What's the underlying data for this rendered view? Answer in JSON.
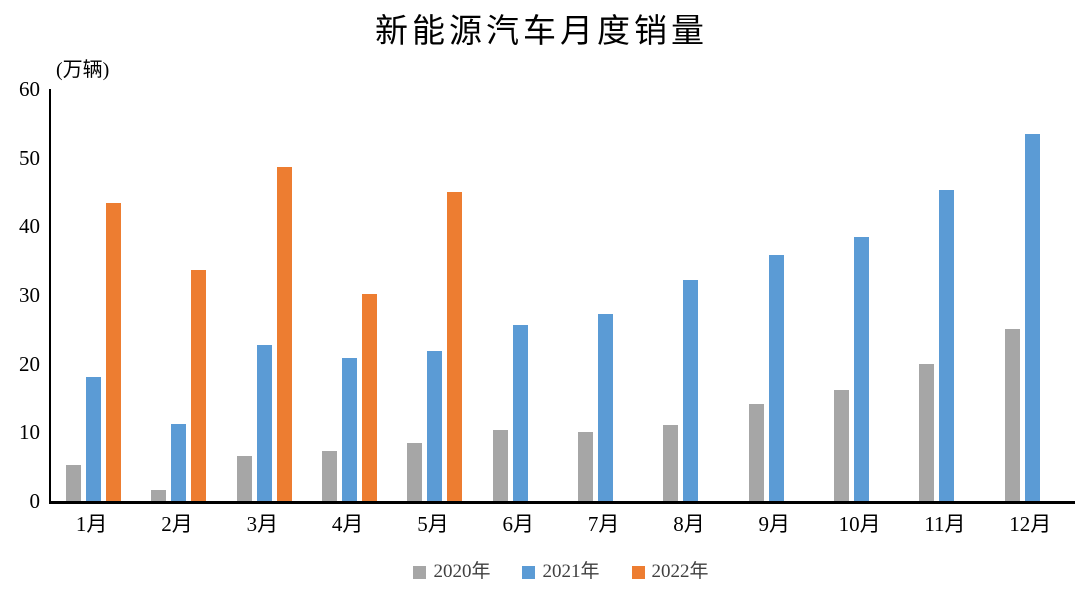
{
  "chart_data": {
    "type": "bar",
    "title": "新能源汽车月度销量",
    "unit_label": "(万辆)",
    "xlabel": "",
    "ylabel": "万辆",
    "categories": [
      "1月",
      "2月",
      "3月",
      "4月",
      "5月",
      "6月",
      "7月",
      "8月",
      "9月",
      "10月",
      "11月",
      "12月"
    ],
    "series": [
      {
        "name": "2020年",
        "color": "#A6A6A6",
        "values": [
          5.3,
          1.6,
          6.6,
          7.3,
          8.4,
          10.4,
          10.0,
          11.0,
          14.1,
          16.1,
          20.0,
          25.0
        ]
      },
      {
        "name": "2021年",
        "color": "#5B9BD5",
        "values": [
          18.0,
          11.2,
          22.7,
          20.8,
          21.8,
          25.7,
          27.3,
          32.2,
          35.8,
          38.5,
          45.3,
          53.4
        ]
      },
      {
        "name": "2022年",
        "color": "#ED7D31",
        "values": [
          43.4,
          33.6,
          48.6,
          30.1,
          45.0,
          null,
          null,
          null,
          null,
          null,
          null,
          null
        ]
      }
    ],
    "ylim": [
      0,
      60
    ],
    "y_ticks": [
      0,
      10,
      20,
      30,
      40,
      50,
      60
    ],
    "grid": false,
    "legend_position": "bottom",
    "axis_color": "#000000",
    "background_color": "#FFFFFF"
  }
}
